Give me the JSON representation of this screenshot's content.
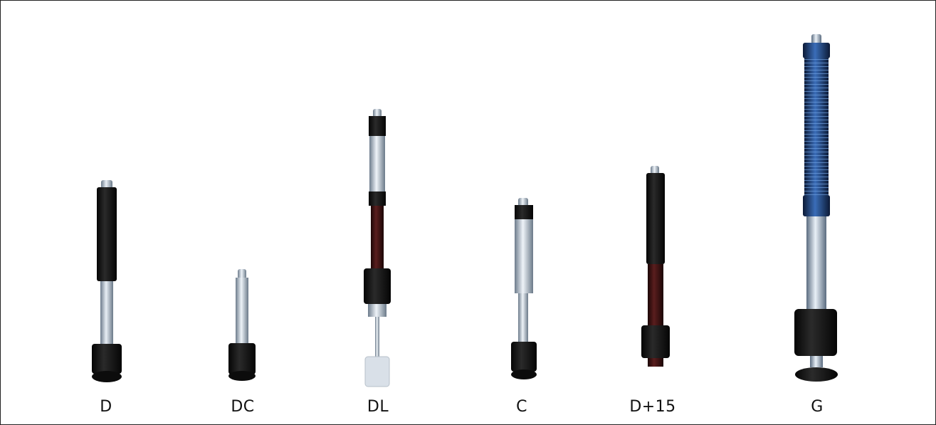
{
  "probes": [
    {
      "name": "D"
    },
    {
      "name": "DC"
    },
    {
      "name": "DL"
    },
    {
      "name": "C"
    },
    {
      "name": "D+15"
    },
    {
      "name": "G"
    }
  ],
  "colors": {
    "background": "#ffffff",
    "border": "#222222",
    "probe_black": "#141414",
    "probe_chrome": "#b9c7d6",
    "probe_blue": "#2a4d8a",
    "probe_red": "#5a1a1a"
  }
}
